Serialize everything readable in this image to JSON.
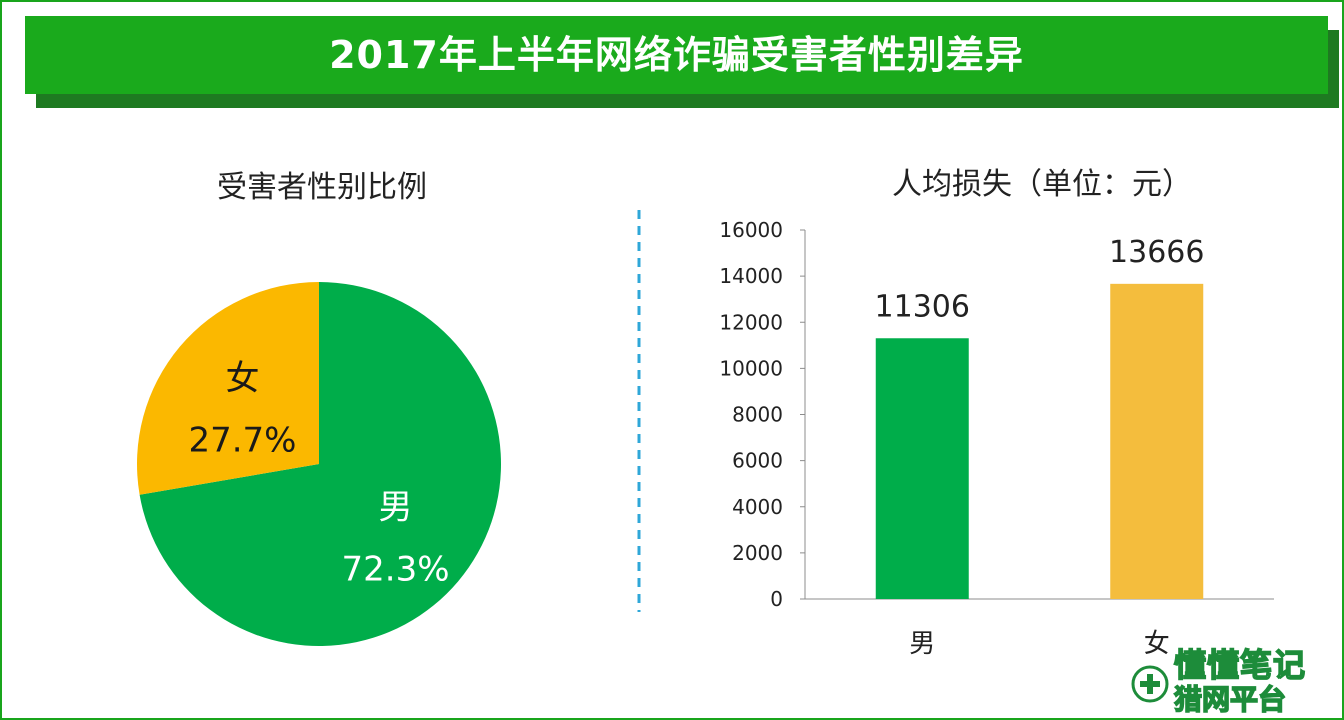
{
  "title": "2017年上半年网络诈骗受害者性别差异",
  "colors": {
    "frame": "#19a51c",
    "banner": "#1aaa1c",
    "banner_shadow": "#1e7a21",
    "male": "#00ad4a",
    "female_pie": "#fbb800",
    "female_bar": "#f4bd3d",
    "divider": "#2fa7d8"
  },
  "watermark": {
    "text": "懂懂笔记",
    "sub": "猎网平台",
    "icon": "wechat-icon"
  },
  "chart_data": [
    {
      "type": "pie",
      "title": "受害者性别比例",
      "slices": [
        {
          "name": "男",
          "value": 72.3,
          "label": "72.3%"
        },
        {
          "name": "女",
          "value": 27.7,
          "label": "27.7%"
        }
      ]
    },
    {
      "type": "bar",
      "title": "人均损失（单位：元）",
      "categories": [
        "男",
        "女"
      ],
      "values": [
        11306,
        13666
      ],
      "data_labels": [
        "11306",
        "13666"
      ],
      "ylim": [
        0,
        16000
      ],
      "yticks": [
        "0",
        "2000",
        "4000",
        "6000",
        "8000",
        "10000",
        "12000",
        "14000",
        "16000"
      ],
      "grid": false,
      "legend": "none"
    }
  ]
}
